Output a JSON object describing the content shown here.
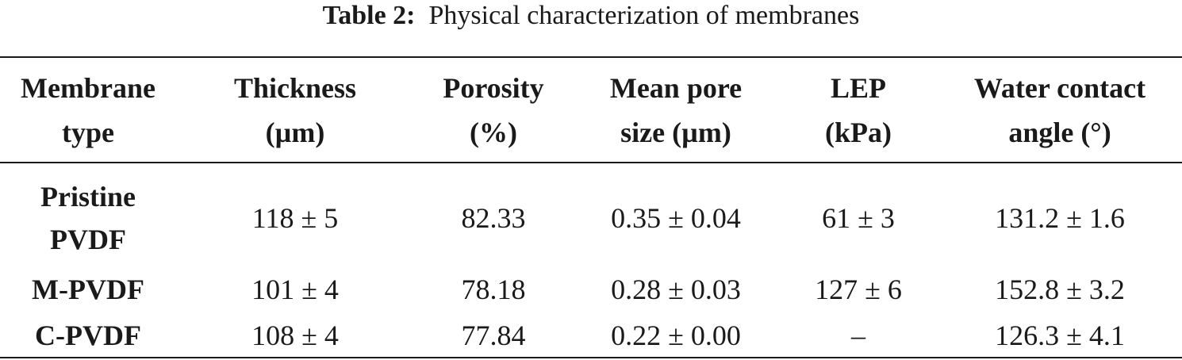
{
  "caption": {
    "label": "Table 2:",
    "text": "Physical characterization of membranes"
  },
  "table": {
    "headers": [
      {
        "line1": "Membrane",
        "line2": "type"
      },
      {
        "line1": "Thickness",
        "line2": "(µm)"
      },
      {
        "line1": "Porosity",
        "line2": "(%)"
      },
      {
        "line1": "Mean pore",
        "line2": "size (µm)"
      },
      {
        "line1": "LEP",
        "line2": "(kPa)"
      },
      {
        "line1": "Water contact",
        "line2": "angle (°)"
      }
    ],
    "rows": [
      {
        "name_line1": "Pristine",
        "name_line2": "PVDF",
        "thickness": "118 ± 5",
        "porosity": "82.33",
        "pore_size": "0.35 ± 0.04",
        "lep": "61 ± 3",
        "contact_angle": "131.2 ± 1.6"
      },
      {
        "name_line1": "M-PVDF",
        "name_line2": "",
        "thickness": "101 ± 4",
        "porosity": "78.18",
        "pore_size": "0.28 ± 0.03",
        "lep": "127 ± 6",
        "contact_angle": "152.8 ± 3.2"
      },
      {
        "name_line1": "C-PVDF",
        "name_line2": "",
        "thickness": "108 ± 4",
        "porosity": "77.84",
        "pore_size": "0.22 ± 0.00",
        "lep": "–",
        "contact_angle": "126.3 ± 4.1"
      }
    ]
  }
}
